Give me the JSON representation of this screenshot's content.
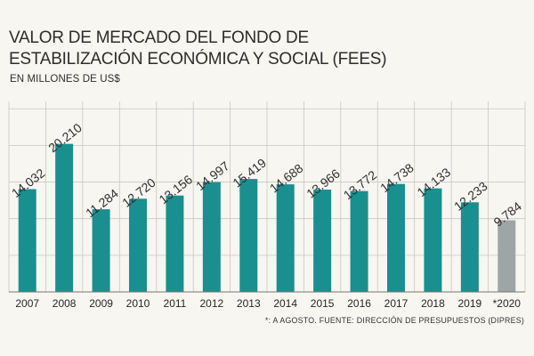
{
  "chart_data": {
    "type": "bar",
    "title": "VALOR DE MERCADO DEL FONDO DE ESTABILIZACIÓN ECONÓMICA Y SOCIAL (FEES)",
    "subtitle": "EN MILLONES DE US$",
    "xlabel": "",
    "ylabel": "",
    "ylim": [
      0,
      26000
    ],
    "categories": [
      "2007",
      "2008",
      "2009",
      "2010",
      "2011",
      "2012",
      "2013",
      "2014",
      "2015",
      "2016",
      "2017",
      "2018",
      "2019",
      "*2020"
    ],
    "values": [
      14032,
      20210,
      11284,
      12720,
      13156,
      14997,
      15419,
      14688,
      13966,
      13772,
      14738,
      14133,
      12233,
      9784
    ],
    "value_labels": [
      "14.032",
      "20.210",
      "11.284",
      "12.720",
      "13.156",
      "14.997",
      "15.419",
      "14.688",
      "13.966",
      "13.772",
      "14.738",
      "14.133",
      "12.233",
      "9.784"
    ],
    "colors": {
      "bar": "#1a8f8f",
      "highlight_bar": "#9ea5a7",
      "grid": "#c7c7c7",
      "axis": "#777777",
      "panel_divider": "#c7c7c7"
    },
    "highlight_index": 13,
    "grid": true,
    "footnote": "*: A AGOSTO. FUENTE: DIRECCIÓN DE PRESUPUESTOS (DIPRES)"
  }
}
